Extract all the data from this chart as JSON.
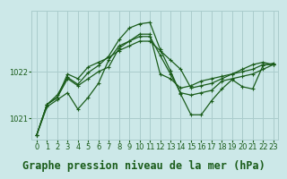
{
  "bg_color": "#cce8e8",
  "grid_color": "#aacccc",
  "line_color": "#1a5c1a",
  "title": "Graphe pression niveau de la mer (hPa)",
  "xlim": [
    -0.5,
    23.5
  ],
  "ylim": [
    1020.55,
    1023.3
  ],
  "yticks": [
    1021,
    1022
  ],
  "xticks": [
    0,
    1,
    2,
    3,
    4,
    5,
    6,
    7,
    8,
    9,
    10,
    11,
    12,
    13,
    14,
    15,
    16,
    17,
    18,
    19,
    20,
    21,
    22,
    23
  ],
  "series": [
    [
      1020.65,
      1021.25,
      1021.4,
      1021.55,
      1021.2,
      1021.45,
      1021.75,
      1022.25,
      1022.55,
      1022.65,
      1022.75,
      1022.75,
      1022.35,
      1021.95,
      1021.55,
      1021.5,
      1021.55,
      1021.6,
      1021.8,
      1021.85,
      1021.9,
      1021.95,
      1022.05,
      1022.15
    ],
    [
      1020.65,
      1021.3,
      1021.45,
      1021.95,
      1021.85,
      1022.1,
      1022.2,
      1022.3,
      1022.45,
      1022.55,
      1022.65,
      1022.65,
      1022.45,
      1022.25,
      1022.05,
      1021.65,
      1021.7,
      1021.75,
      1021.85,
      1021.95,
      1022.05,
      1022.15,
      1022.2,
      1022.15
    ],
    [
      1020.65,
      1021.3,
      1021.45,
      1021.85,
      1021.7,
      1021.85,
      1022.0,
      1022.1,
      1022.5,
      1022.65,
      1022.8,
      1022.8,
      1021.95,
      1021.85,
      1021.65,
      1021.7,
      1021.8,
      1021.85,
      1021.9,
      1021.95,
      1022.0,
      1022.05,
      1022.15,
      1022.15
    ],
    [
      1020.65,
      1021.3,
      1021.5,
      1021.88,
      1021.73,
      1021.98,
      1022.13,
      1022.33,
      1022.68,
      1022.93,
      1023.02,
      1023.05,
      1022.48,
      1022.02,
      1021.52,
      1021.08,
      1021.08,
      1021.38,
      1021.63,
      1021.83,
      1021.68,
      1021.63,
      1022.13,
      1022.18
    ]
  ],
  "title_fontsize": 8.5,
  "tick_fontsize": 6,
  "marker_size": 3.5,
  "line_width": 0.9
}
